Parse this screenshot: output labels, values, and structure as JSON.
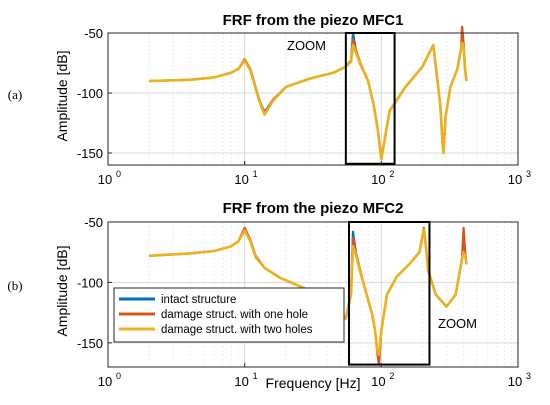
{
  "chart_data": [
    {
      "type": "line",
      "panel_label": "(a)",
      "title": "FRF from the piezo MFC1",
      "xlabel": "",
      "ylabel": "Amplitude [dB]",
      "xscale": "log",
      "xlim": [
        1,
        1000
      ],
      "ylim": [
        -160,
        -50
      ],
      "xticks": [
        {
          "base": "10",
          "exp": "0"
        },
        {
          "base": "10",
          "exp": "1"
        },
        {
          "base": "10",
          "exp": "2"
        },
        {
          "base": "10",
          "exp": "3"
        }
      ],
      "yticks": [
        -50,
        -100,
        -150
      ],
      "grid": true,
      "zoom_label": "ZOOM",
      "zoom_box": {
        "x": [
          55,
          125
        ],
        "y": [
          -159,
          -50
        ]
      },
      "series": [
        {
          "name": "intact structure",
          "color": "#0072BD",
          "x": [
            2,
            4,
            6,
            8,
            9,
            10,
            11,
            12,
            13,
            14,
            16,
            20,
            30,
            45,
            55,
            60,
            62,
            65,
            70,
            80,
            88,
            94,
            100,
            115,
            150,
            200,
            240,
            270,
            280,
            285,
            295,
            320,
            360,
            385,
            390,
            400,
            410,
            420
          ],
          "y": [
            -90,
            -89,
            -87,
            -83,
            -80,
            -72,
            -80,
            -95,
            -108,
            -116,
            -106,
            -95,
            -88,
            -83,
            -78,
            -73,
            -50,
            -64,
            -75,
            -90,
            -110,
            -130,
            -155,
            -115,
            -95,
            -78,
            -60,
            -110,
            -140,
            -150,
            -120,
            -95,
            -80,
            -62,
            -45,
            -60,
            -80,
            -90
          ]
        },
        {
          "name": "damage struct. with one hole",
          "color": "#D95319",
          "x": [
            2,
            4,
            6,
            8,
            9,
            10,
            11,
            12,
            13,
            14,
            16,
            20,
            30,
            45,
            55,
            60,
            62,
            65,
            70,
            80,
            88,
            94,
            100,
            115,
            150,
            200,
            240,
            270,
            280,
            285,
            295,
            320,
            360,
            385,
            390,
            400,
            410,
            420
          ],
          "y": [
            -90,
            -89,
            -87,
            -83,
            -80,
            -72,
            -80,
            -95,
            -108,
            -117,
            -106,
            -95,
            -88,
            -83,
            -78,
            -73,
            -55,
            -64,
            -75,
            -90,
            -110,
            -130,
            -155,
            -115,
            -95,
            -78,
            -60,
            -110,
            -140,
            -150,
            -120,
            -95,
            -80,
            -62,
            -45,
            -60,
            -80,
            -90
          ]
        },
        {
          "name": "damage struct. with two holes",
          "color": "#EDB120",
          "x": [
            2,
            4,
            6,
            8,
            9,
            10,
            11,
            12,
            13,
            14,
            16,
            20,
            30,
            45,
            55,
            60,
            62,
            65,
            70,
            80,
            88,
            94,
            100,
            115,
            150,
            200,
            240,
            270,
            280,
            285,
            295,
            320,
            360,
            385,
            390,
            400,
            410,
            420
          ],
          "y": [
            -90,
            -89,
            -87,
            -83,
            -80,
            -73,
            -81,
            -96,
            -109,
            -118,
            -107,
            -95,
            -88,
            -83,
            -78,
            -74,
            -60,
            -66,
            -76,
            -90,
            -110,
            -130,
            -155,
            -115,
            -95,
            -78,
            -60,
            -110,
            -140,
            -150,
            -120,
            -95,
            -80,
            -62,
            -58,
            -62,
            -80,
            -90
          ]
        }
      ]
    },
    {
      "type": "line",
      "panel_label": "(b)",
      "title": "FRF from the piezo MFC2",
      "xlabel": "Frequency [Hz]",
      "ylabel": "Amplitude [dB]",
      "xscale": "log",
      "xlim": [
        1,
        1000
      ],
      "ylim": [
        -170,
        -50
      ],
      "xticks": [
        {
          "base": "10",
          "exp": "0"
        },
        {
          "base": "10",
          "exp": "1"
        },
        {
          "base": "10",
          "exp": "2"
        },
        {
          "base": "10",
          "exp": "3"
        }
      ],
      "yticks": [
        -50,
        -100,
        -150
      ],
      "grid": true,
      "zoom_label": "ZOOM",
      "zoom_box": {
        "x": [
          58,
          225
        ],
        "y": [
          -168,
          -50
        ]
      },
      "legend": {
        "position": "bottom-left"
      },
      "series": [
        {
          "name": "intact structure",
          "color": "#0072BD",
          "x": [
            2,
            4,
            6,
            8,
            9,
            10,
            11,
            12,
            14,
            18,
            25,
            35,
            45,
            55,
            60,
            62,
            65,
            70,
            78,
            85,
            90,
            93,
            96,
            100,
            110,
            130,
            160,
            190,
            205,
            212,
            220,
            250,
            300,
            350,
            390,
            400,
            410,
            420
          ],
          "y": [
            -78,
            -76,
            -74,
            -70,
            -66,
            -55,
            -65,
            -78,
            -88,
            -96,
            -103,
            -110,
            -120,
            -130,
            -110,
            -58,
            -75,
            -90,
            -110,
            -125,
            -140,
            -155,
            -168,
            -140,
            -110,
            -95,
            -85,
            -75,
            -55,
            -70,
            -90,
            -110,
            -120,
            -110,
            -80,
            -60,
            -75,
            -85
          ]
        },
        {
          "name": "damage struct. with one hole",
          "color": "#D95319",
          "x": [
            2,
            4,
            6,
            8,
            9,
            10,
            11,
            12,
            14,
            18,
            25,
            35,
            45,
            55,
            60,
            62,
            65,
            70,
            78,
            85,
            90,
            93,
            96,
            100,
            110,
            130,
            160,
            190,
            205,
            212,
            220,
            250,
            300,
            350,
            390,
            400,
            410,
            420
          ],
          "y": [
            -78,
            -76,
            -74,
            -70,
            -66,
            -55,
            -65,
            -78,
            -88,
            -96,
            -103,
            -110,
            -120,
            -130,
            -110,
            -63,
            -75,
            -90,
            -110,
            -125,
            -140,
            -155,
            -168,
            -140,
            -110,
            -95,
            -85,
            -75,
            -55,
            -70,
            -90,
            -110,
            -120,
            -110,
            -80,
            -55,
            -75,
            -85
          ]
        },
        {
          "name": "damage struct. with two holes",
          "color": "#EDB120",
          "x": [
            2,
            4,
            6,
            8,
            9,
            10,
            11,
            12,
            14,
            18,
            25,
            35,
            45,
            55,
            60,
            62,
            65,
            70,
            78,
            85,
            90,
            93,
            96,
            100,
            110,
            130,
            160,
            190,
            205,
            212,
            220,
            250,
            300,
            350,
            390,
            400,
            410,
            420
          ],
          "y": [
            -78,
            -76,
            -74,
            -70,
            -66,
            -57,
            -66,
            -79,
            -88,
            -96,
            -103,
            -110,
            -120,
            -130,
            -110,
            -70,
            -77,
            -91,
            -110,
            -125,
            -140,
            -155,
            -160,
            -140,
            -110,
            -95,
            -85,
            -75,
            -56,
            -70,
            -90,
            -110,
            -120,
            -110,
            -80,
            -75,
            -78,
            -85
          ]
        }
      ]
    }
  ]
}
